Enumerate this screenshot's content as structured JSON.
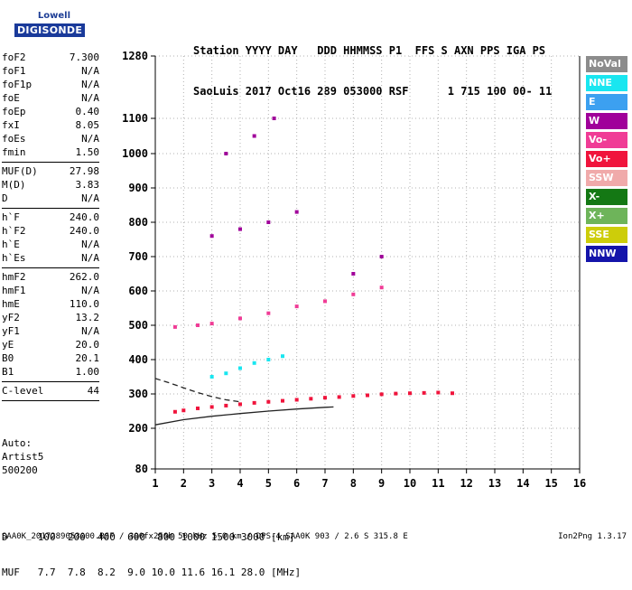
{
  "logo": {
    "line1": "Lowell",
    "line2": "DIGISONDE"
  },
  "header": {
    "line1": "Station YYYY DAY   DDD HHMMSS P1  FFS S AXN PPS IGA PS",
    "line2": "SaoLuis 2017 Oct16 289 053000 RSF      1 715 100 00- 11"
  },
  "params": {
    "group1": [
      {
        "name": "foF2",
        "value": "7.300"
      },
      {
        "name": "foF1",
        "value": "N/A"
      },
      {
        "name": "foF1p",
        "value": "N/A"
      },
      {
        "name": "foE",
        "value": "N/A"
      },
      {
        "name": "foEp",
        "value": "0.40"
      },
      {
        "name": "fxI",
        "value": "8.05"
      },
      {
        "name": "foEs",
        "value": "N/A"
      },
      {
        "name": "fmin",
        "value": "1.50"
      }
    ],
    "group2": [
      {
        "name": "MUF(D)",
        "value": "27.98"
      },
      {
        "name": "M(D)",
        "value": "3.83"
      },
      {
        "name": "D",
        "value": "N/A"
      }
    ],
    "group3": [
      {
        "name": "h`F",
        "value": "240.0"
      },
      {
        "name": "h`F2",
        "value": "240.0"
      },
      {
        "name": "h`E",
        "value": "N/A"
      },
      {
        "name": "h`Es",
        "value": "N/A"
      }
    ],
    "group4": [
      {
        "name": "hmF2",
        "value": "262.0"
      },
      {
        "name": "hmF1",
        "value": "N/A"
      },
      {
        "name": "hmE",
        "value": "110.0"
      },
      {
        "name": "yF2",
        "value": "13.2"
      },
      {
        "name": "yF1",
        "value": "N/A"
      },
      {
        "name": "yE",
        "value": "20.0"
      },
      {
        "name": "B0",
        "value": "20.1"
      },
      {
        "name": "B1",
        "value": "1.00"
      }
    ],
    "group5": [
      {
        "name": "C-level",
        "value": "44"
      }
    ]
  },
  "autoscale": {
    "line1": "Auto:",
    "line2": "Artist5",
    "line3": "500200"
  },
  "footer": {
    "d_line": "D     100  200  400  600  800 1000 1500 3000 [km]",
    "muf_line": "MUF   7.7  7.8  8.2  9.0 10.0 11.6 16.1 28.0 [MHz]"
  },
  "bottom": {
    "left": "SAA0K_2017289053000.RSF / 300fx256h 50 kHz 5.0 km / DPS-4 SAA0K 903 / 2.6 S 315.8 E",
    "right": "Ion2Png 1.3.17"
  },
  "legend": [
    {
      "label": "NoVal",
      "color": "#8c8c8c"
    },
    {
      "label": "NNE",
      "color": "#19e6f0"
    },
    {
      "label": "E",
      "color": "#3ca0f0"
    },
    {
      "label": "W",
      "color": "#a0009a"
    },
    {
      "label": "Vo-",
      "color": "#f03c96"
    },
    {
      "label": "Vo+",
      "color": "#f0143c"
    },
    {
      "label": "SSW",
      "color": "#f0aaaa"
    },
    {
      "label": "X-",
      "color": "#147814"
    },
    {
      "label": "X+",
      "color": "#6eb45a"
    },
    {
      "label": "SSE",
      "color": "#cdcd0a"
    },
    {
      "label": "NNW",
      "color": "#1414aa"
    }
  ],
  "chart_data": {
    "type": "scatter",
    "title": "",
    "xlabel": "",
    "ylabel": "",
    "xlim": [
      1,
      16
    ],
    "ylim": [
      80,
      1280
    ],
    "x_ticks": [
      "1",
      "2",
      "3",
      "4",
      "5",
      "6",
      "7",
      "8",
      "9",
      "10",
      "11",
      "12",
      "13",
      "14",
      "15",
      "16"
    ],
    "y_ticks": [
      "80",
      "200",
      "300",
      "400",
      "500",
      "600",
      "700",
      "800",
      "900",
      "1000",
      "1100",
      "1280"
    ],
    "grid": true,
    "legend_position": "right",
    "series": [
      {
        "name": "Vo+",
        "points": [
          [
            1.7,
            248
          ],
          [
            2.0,
            252
          ],
          [
            2.5,
            258
          ],
          [
            3.0,
            262
          ],
          [
            3.5,
            266
          ],
          [
            4.0,
            270
          ],
          [
            4.5,
            274
          ],
          [
            5.0,
            277
          ],
          [
            5.5,
            280
          ],
          [
            6.0,
            283
          ],
          [
            6.5,
            286
          ],
          [
            7.0,
            289
          ],
          [
            7.5,
            291
          ],
          [
            8.0,
            294
          ],
          [
            8.5,
            296
          ],
          [
            9.0,
            299
          ],
          [
            9.5,
            301
          ],
          [
            10.0,
            302
          ],
          [
            10.5,
            303
          ],
          [
            11.0,
            304
          ],
          [
            11.5,
            302
          ]
        ]
      },
      {
        "name": "Vo-",
        "points": [
          [
            1.7,
            495
          ],
          [
            2.5,
            500
          ],
          [
            3.0,
            505
          ],
          [
            4.0,
            520
          ],
          [
            5.0,
            535
          ],
          [
            6.0,
            555
          ],
          [
            7.0,
            570
          ],
          [
            8.0,
            590
          ],
          [
            9.0,
            610
          ]
        ]
      },
      {
        "name": "W",
        "points": [
          [
            3.0,
            760
          ],
          [
            4.0,
            780
          ],
          [
            5.0,
            800
          ],
          [
            6.0,
            830
          ],
          [
            3.5,
            1000
          ],
          [
            4.5,
            1050
          ],
          [
            5.2,
            1100
          ],
          [
            8.0,
            650
          ],
          [
            9.0,
            700
          ]
        ]
      },
      {
        "name": "NNE",
        "points": [
          [
            3.0,
            350
          ],
          [
            3.5,
            360
          ],
          [
            4.0,
            375
          ],
          [
            4.5,
            390
          ],
          [
            5.0,
            400
          ],
          [
            5.5,
            410
          ]
        ]
      }
    ],
    "curves": [
      {
        "name": "profile",
        "style": "solid",
        "points": [
          [
            1.0,
            210
          ],
          [
            2.0,
            225
          ],
          [
            3.0,
            235
          ],
          [
            4.0,
            243
          ],
          [
            5.0,
            250
          ],
          [
            6.0,
            256
          ],
          [
            7.0,
            261
          ],
          [
            7.3,
            262
          ]
        ]
      },
      {
        "name": "extrapolated",
        "style": "dashed",
        "points": [
          [
            1.0,
            345
          ],
          [
            1.5,
            332
          ],
          [
            2.0,
            318
          ],
          [
            2.5,
            304
          ],
          [
            3.0,
            292
          ],
          [
            3.5,
            283
          ],
          [
            4.0,
            277
          ]
        ]
      }
    ]
  }
}
